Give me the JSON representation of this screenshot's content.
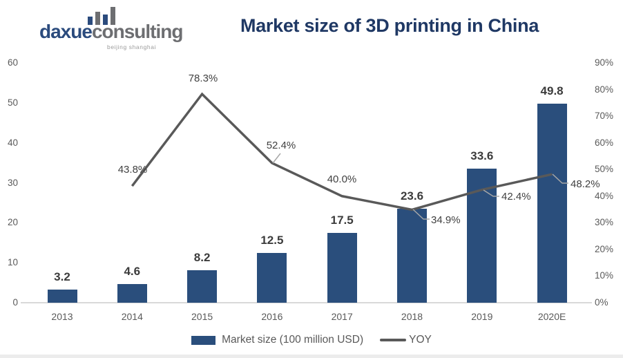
{
  "header": {
    "logo": {
      "brand_blue": "daxue",
      "brand_gray": "consulting",
      "tagline": "beijing shanghai"
    },
    "title": "Market size of 3D printing in China"
  },
  "chart_data": {
    "type": "combo",
    "categories": [
      "2013",
      "2014",
      "2015",
      "2016",
      "2017",
      "2018",
      "2019",
      "2020E"
    ],
    "series": [
      {
        "name": "Market size (100 million USD)",
        "type": "bar",
        "axis": "left",
        "color": "#2A4E7C",
        "values": [
          3.2,
          4.6,
          8.2,
          12.5,
          17.5,
          23.6,
          33.6,
          49.8
        ],
        "data_labels": [
          "3.2",
          "4.6",
          "8.2",
          "12.5",
          "17.5",
          "23.6",
          "33.6",
          "49.8"
        ]
      },
      {
        "name": "YOY",
        "type": "line",
        "axis": "right",
        "color": "#595959",
        "values": [
          null,
          43.8,
          78.3,
          52.4,
          40.0,
          34.9,
          42.4,
          48.2
        ],
        "data_labels": [
          null,
          "43.8%",
          "78.3%",
          "52.4%",
          "40.0%",
          "34.9%",
          "42.4%",
          "48.2%"
        ]
      }
    ],
    "left_axis": {
      "min": 0,
      "max": 60,
      "ticks": [
        "60",
        "50",
        "40",
        "30",
        "20",
        "10",
        "0"
      ]
    },
    "right_axis": {
      "min": 0,
      "max": 90,
      "ticks": [
        "90%",
        "80%",
        "70%",
        "60%",
        "50%",
        "40%",
        "30%",
        "20%",
        "10%",
        "0%"
      ]
    },
    "grid": false,
    "legend_position": "bottom"
  },
  "legend": {
    "bar_label": "Market size (100 million USD)",
    "line_label": "YOY"
  },
  "colors": {
    "bar": "#2A4E7C",
    "line": "#595959",
    "leader": "#A6A6A6",
    "baseline": "#D9D9D9",
    "title": "#1F3864",
    "logo_blue": "#2B4B7D",
    "logo_gray": "#6D6E71",
    "axis_text": "#595959"
  }
}
